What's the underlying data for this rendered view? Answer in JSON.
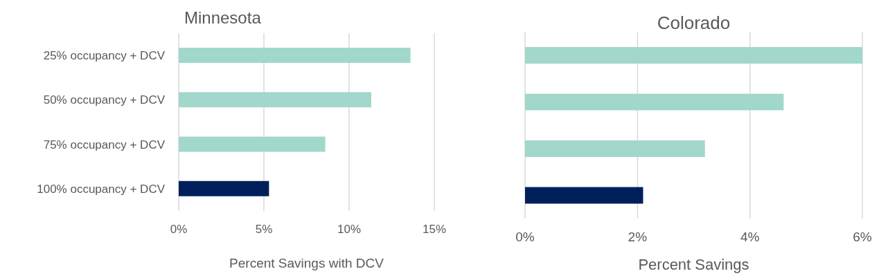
{
  "chart_data": [
    {
      "type": "bar",
      "orientation": "horizontal",
      "title": "Minnesota",
      "xlabel": "Percent Savings with DCV",
      "categories": [
        "25% occupancy + DCV",
        "50% occupancy + DCV",
        "75% occupancy + DCV",
        "100% occupancy + DCV"
      ],
      "values": [
        13.6,
        11.3,
        8.6,
        5.3
      ],
      "colors": [
        "#a2d7cb",
        "#a2d7cb",
        "#a2d7cb",
        "#00205b"
      ],
      "xlim": [
        0,
        15
      ],
      "xticks": [
        {
          "value": 0,
          "label": "0%"
        },
        {
          "value": 5,
          "label": "5%"
        },
        {
          "value": 10,
          "label": "10%"
        },
        {
          "value": 15,
          "label": "15%"
        }
      ],
      "grid": "x"
    },
    {
      "type": "bar",
      "orientation": "horizontal",
      "title": "Colorado",
      "xlabel": "Percent Savings",
      "categories": [
        null,
        null,
        null,
        null
      ],
      "values": [
        6.0,
        4.6,
        3.2,
        2.1
      ],
      "colors": [
        "#a2d7cb",
        "#a2d7cb",
        "#a2d7cb",
        "#00205b"
      ],
      "xlim": [
        0,
        6
      ],
      "xticks": [
        {
          "value": 0,
          "label": "0%"
        },
        {
          "value": 2,
          "label": "2%"
        },
        {
          "value": 4,
          "label": "4%"
        },
        {
          "value": 6,
          "label": "6%"
        }
      ],
      "grid": "x"
    }
  ]
}
